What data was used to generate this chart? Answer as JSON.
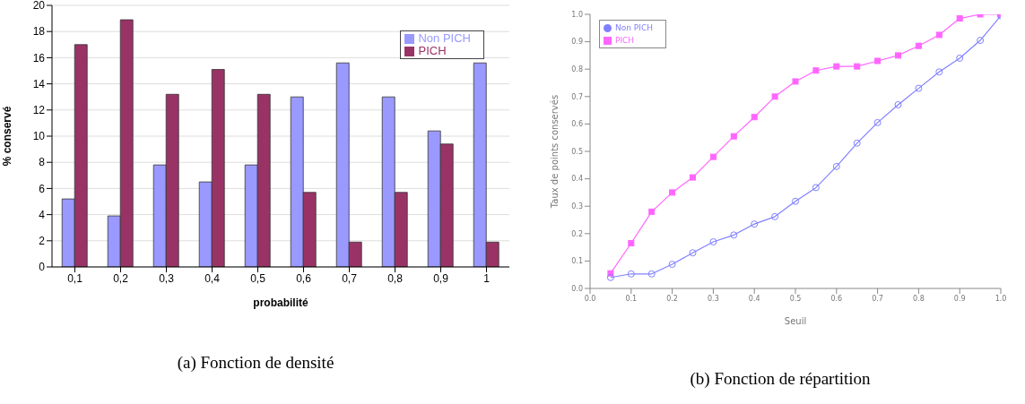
{
  "chart_data": [
    {
      "type": "bar",
      "categories": [
        "0,1",
        "0,2",
        "0,3",
        "0,4",
        "0,5",
        "0,6",
        "0,7",
        "0,8",
        "0,9",
        "1"
      ],
      "series": [
        {
          "name": "Non PICH",
          "color": "#9999ff",
          "values": [
            5.2,
            3.9,
            7.8,
            6.5,
            7.8,
            13.0,
            15.6,
            13.0,
            10.4,
            15.6
          ]
        },
        {
          "name": "PICH",
          "color": "#993366",
          "values": [
            17.0,
            18.9,
            13.2,
            15.1,
            13.2,
            5.7,
            1.9,
            5.7,
            9.4,
            1.9
          ]
        }
      ],
      "xlabel": "probabilité",
      "ylabel": "% conservé",
      "ylim": [
        0,
        20
      ],
      "yticks": [
        0,
        2,
        4,
        6,
        8,
        10,
        12,
        14,
        16,
        18,
        20
      ],
      "grid": "y",
      "legend": "top right",
      "annotations": [
        "(a) Fonction de densité"
      ]
    },
    {
      "type": "line",
      "x": [
        0.05,
        0.1,
        0.15,
        0.2,
        0.25,
        0.3,
        0.35,
        0.4,
        0.45,
        0.5,
        0.55,
        0.6,
        0.65,
        0.7,
        0.75,
        0.8,
        0.85,
        0.9,
        0.95,
        1.0
      ],
      "series": [
        {
          "name": "PICH",
          "color": "#ff66ff",
          "marker": "square",
          "values": [
            0.055,
            0.165,
            0.28,
            0.35,
            0.405,
            0.48,
            0.555,
            0.625,
            0.7,
            0.755,
            0.795,
            0.81,
            0.81,
            0.83,
            0.85,
            0.885,
            0.925,
            0.985,
            1.0,
            1.0
          ]
        },
        {
          "name": "Non PICH",
          "color": "#8080ff",
          "marker": "circle",
          "values": [
            0.04,
            0.053,
            0.053,
            0.088,
            0.13,
            0.17,
            0.195,
            0.235,
            0.262,
            0.318,
            0.368,
            0.445,
            0.53,
            0.605,
            0.67,
            0.73,
            0.79,
            0.84,
            0.905,
            0.995
          ]
        }
      ],
      "xlabel": "Seuil",
      "ylabel": "Taux de points conservés",
      "xlim": [
        0,
        1
      ],
      "xticks": [
        {
          "value": 0,
          "label": "0.0"
        },
        0.1,
        0.2,
        0.3,
        0.4,
        0.5,
        0.6,
        0.7,
        0.8,
        0.9,
        {
          "value": 1,
          "label": "1.0"
        }
      ],
      "ylim": [
        0,
        1
      ],
      "yticks": [
        {
          "value": 0,
          "label": "0.0"
        },
        0.1,
        0.2,
        0.3,
        0.4,
        0.5,
        0.6,
        0.7,
        0.8,
        0.9,
        {
          "value": 1,
          "label": "1.0"
        }
      ],
      "grid": false,
      "legend": "top left",
      "annotations": [
        "(b) Fonction de répartition"
      ]
    }
  ]
}
